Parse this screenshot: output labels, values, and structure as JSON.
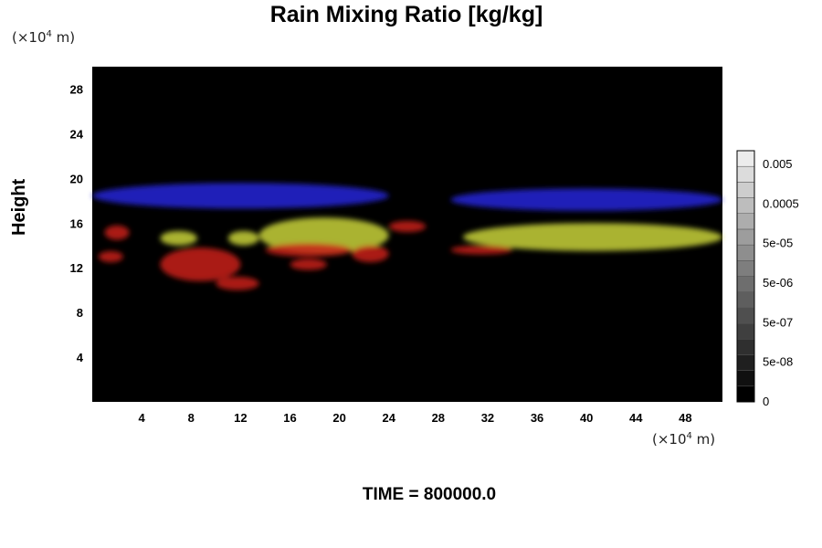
{
  "chart_data": {
    "type": "heatmap",
    "title": "Rain Mixing Ratio [kg/kg]",
    "ylabel": "Height",
    "xlabel": "",
    "y_unit": "(×10⁴ m)",
    "x_unit": "(×10⁴ m)",
    "unit_base": "(×10",
    "unit_exp": "4",
    "unit_tail": " m)",
    "xlim": [
      0,
      51
    ],
    "ylim": [
      0,
      30
    ],
    "x_ticks": [
      4,
      8,
      12,
      16,
      20,
      24,
      28,
      32,
      36,
      40,
      44,
      48
    ],
    "y_ticks": [
      4,
      8,
      12,
      16,
      20,
      24,
      28
    ],
    "background": "#000000",
    "colorbar": {
      "labels": [
        "0",
        "5e-08",
        "5e-07",
        "5e-06",
        "5e-05",
        "0.0005",
        "0.005"
      ],
      "levels": 16,
      "min_color": "#000000",
      "max_color": "#ececec"
    },
    "series": [
      {
        "color": "#2323d8",
        "regions": [
          {
            "x": [
              0,
              24
            ],
            "y": [
              17.3,
              19.6
            ]
          },
          {
            "x": [
              29,
              51
            ],
            "y": [
              17.1,
              19.1
            ]
          }
        ]
      },
      {
        "color": "#c8d23a",
        "regions": [
          {
            "x": [
              5.5,
              8.5
            ],
            "y": [
              14.0,
              15.3
            ]
          },
          {
            "x": [
              11,
              13.5
            ],
            "y": [
              14.0,
              15.3
            ]
          },
          {
            "x": [
              13.5,
              24
            ],
            "y": [
              13.3,
              16.5
            ]
          },
          {
            "x": [
              30,
              51
            ],
            "y": [
              13.5,
              16.0
            ]
          }
        ]
      },
      {
        "color": "#c8201a",
        "regions": [
          {
            "x": [
              1,
              3
            ],
            "y": [
              14.5,
              15.8
            ]
          },
          {
            "x": [
              0.5,
              2.5
            ],
            "y": [
              12.5,
              13.5
            ]
          },
          {
            "x": [
              5.5,
              12
            ],
            "y": [
              10.8,
              13.8
            ]
          },
          {
            "x": [
              10,
              13.5
            ],
            "y": [
              10.0,
              11.2
            ]
          },
          {
            "x": [
              14,
              21
            ],
            "y": [
              13.0,
              14.2
            ]
          },
          {
            "x": [
              16,
              19
            ],
            "y": [
              11.8,
              12.8
            ]
          },
          {
            "x": [
              21,
              24
            ],
            "y": [
              12.5,
              14.0
            ]
          },
          {
            "x": [
              24,
              27
            ],
            "y": [
              15.2,
              16.2
            ]
          },
          {
            "x": [
              29,
              34
            ],
            "y": [
              13.2,
              14.0
            ]
          }
        ]
      }
    ]
  },
  "footer": {
    "text": "TIME = 800000.0"
  }
}
